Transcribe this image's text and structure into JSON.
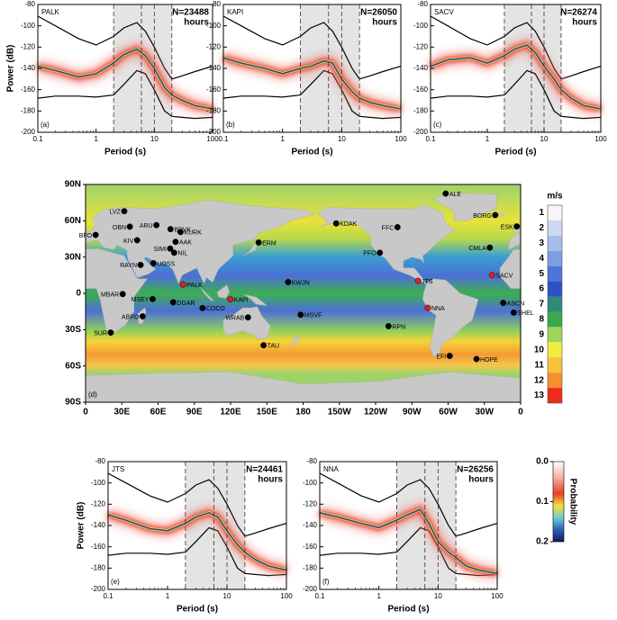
{
  "chart_data": [
    {
      "type": "psd",
      "title": "PALK",
      "annotation": "N=23488",
      "annotation2": "hours",
      "panel_label": "(a)",
      "xlabel": "Period (s)",
      "ylabel": "Power (dB)",
      "xscale": "log",
      "xlim": [
        0.1,
        100
      ],
      "ylim": [
        -200,
        -80
      ],
      "xticks": [
        0.1,
        1,
        10,
        100
      ],
      "yticks": [
        -200,
        -180,
        -160,
        -140,
        -120,
        -100,
        -80
      ],
      "shade": true,
      "dashes": [
        2,
        6,
        10,
        20
      ],
      "x": [
        0.1,
        0.2,
        0.5,
        1,
        2,
        3,
        5,
        7,
        10,
        15,
        20,
        30,
        50,
        100
      ],
      "series": [
        {
          "color": "#000000",
          "values": [
            -91,
            -100,
            -112,
            -118,
            -110,
            -102,
            -97,
            -105,
            -120,
            -140,
            -150,
            -147,
            -143,
            -138
          ]
        },
        {
          "color": "#000000",
          "values": [
            -168,
            -166,
            -166,
            -167,
            -165,
            -155,
            -142,
            -145,
            -160,
            -180,
            -185,
            -186,
            -187,
            -186
          ]
        },
        {
          "color": "#1f4fa0",
          "values": [
            -138,
            -142,
            -148,
            -145,
            -135,
            -127,
            -122,
            -128,
            -140,
            -158,
            -165,
            -170,
            -175,
            -178
          ]
        }
      ]
    },
    {
      "type": "psd",
      "title": "KAPI",
      "annotation": "N=26050",
      "annotation2": "hours",
      "panel_label": "(b)",
      "xlabel": "Period (s)",
      "xscale": "log",
      "xlim": [
        0.1,
        100
      ],
      "ylim": [
        -200,
        -80
      ],
      "xticks": [
        0.1,
        1,
        10,
        100
      ],
      "yticks": [
        -200,
        -180,
        -160,
        -140,
        -120,
        -100,
        -80
      ],
      "shade": true,
      "dashes": [
        2,
        6,
        10,
        20
      ],
      "x": [
        0.1,
        0.2,
        0.5,
        1,
        2,
        3,
        5,
        7,
        10,
        15,
        20,
        30,
        50,
        100
      ],
      "series": [
        {
          "color": "#000000",
          "values": [
            -91,
            -100,
            -112,
            -118,
            -110,
            -102,
            -97,
            -105,
            -120,
            -140,
            -150,
            -147,
            -143,
            -138
          ]
        },
        {
          "color": "#000000",
          "values": [
            -168,
            -166,
            -166,
            -167,
            -165,
            -155,
            -142,
            -145,
            -160,
            -180,
            -185,
            -186,
            -187,
            -186
          ]
        },
        {
          "color": "#1f4fa0",
          "values": [
            -130,
            -135,
            -140,
            -145,
            -140,
            -138,
            -133,
            -135,
            -150,
            -162,
            -168,
            -172,
            -175,
            -178
          ]
        }
      ]
    },
    {
      "type": "psd",
      "title": "SACV",
      "annotation": "N=26274",
      "annotation2": "hours",
      "panel_label": "(c)",
      "xlabel": "Period (s)",
      "xscale": "log",
      "xlim": [
        0.1,
        100
      ],
      "ylim": [
        -200,
        -80
      ],
      "xticks": [
        0.1,
        1,
        10,
        100
      ],
      "yticks": [
        -200,
        -180,
        -160,
        -140,
        -120,
        -100,
        -80
      ],
      "shade": true,
      "dashes": [
        2,
        6,
        10,
        20
      ],
      "x": [
        0.1,
        0.2,
        0.5,
        1,
        2,
        3,
        5,
        7,
        10,
        15,
        20,
        30,
        50,
        100
      ],
      "series": [
        {
          "color": "#000000",
          "values": [
            -91,
            -100,
            -112,
            -118,
            -110,
            -102,
            -97,
            -105,
            -120,
            -140,
            -150,
            -147,
            -143,
            -138
          ]
        },
        {
          "color": "#000000",
          "values": [
            -168,
            -166,
            -166,
            -167,
            -165,
            -155,
            -142,
            -145,
            -160,
            -180,
            -185,
            -186,
            -187,
            -186
          ]
        },
        {
          "color": "#1f4fa0",
          "values": [
            -138,
            -132,
            -130,
            -135,
            -128,
            -122,
            -118,
            -125,
            -138,
            -150,
            -160,
            -168,
            -175,
            -178
          ]
        }
      ]
    },
    {
      "type": "map",
      "panel_label": "(d)",
      "xlim": [
        0,
        360
      ],
      "ylim": [
        -90,
        90
      ],
      "xticks": [
        0,
        {
          "value": 30,
          "label": "30E"
        },
        {
          "value": 60,
          "label": "60E"
        },
        {
          "value": 90,
          "label": "90E"
        },
        {
          "value": 120,
          "label": "120E"
        },
        {
          "value": 150,
          "label": "150E"
        },
        180,
        {
          "value": 210,
          "label": "150W"
        },
        {
          "value": 240,
          "label": "120W"
        },
        {
          "value": 270,
          "label": "90W"
        },
        {
          "value": 300,
          "label": "60W"
        },
        {
          "value": 330,
          "label": "30W"
        },
        {
          "value": 360,
          "label": "0"
        }
      ],
      "yticks": [
        {
          "value": 90,
          "label": "90N"
        },
        {
          "value": 60,
          "label": "60N"
        },
        {
          "value": 30,
          "label": "30N"
        },
        0,
        {
          "value": -30,
          "label": "30S"
        },
        {
          "value": -60,
          "label": "60S"
        },
        {
          "value": -90,
          "label": "90S"
        }
      ],
      "stations": [
        {
          "name": "ALE",
          "lon": 298,
          "lat": 82.5,
          "color": "#000000"
        },
        {
          "name": "BORG",
          "lon": 339,
          "lat": 64.7,
          "color": "#000000"
        },
        {
          "name": "ESK",
          "lon": 356.8,
          "lat": 55.3,
          "color": "#000000"
        },
        {
          "name": "CMLA",
          "lon": 334.5,
          "lat": 37.8,
          "color": "#000000"
        },
        {
          "name": "SACV",
          "lon": 336.4,
          "lat": 15,
          "color": "#e02020"
        },
        {
          "name": "ASCN",
          "lon": 345.6,
          "lat": -7.9,
          "color": "#000000"
        },
        {
          "name": "SHEL",
          "lon": 354.3,
          "lat": -15.9,
          "color": "#000000"
        },
        {
          "name": "HOPE",
          "lon": 323.5,
          "lat": -54.3,
          "color": "#000000"
        },
        {
          "name": "EFI",
          "lon": 301.3,
          "lat": -51.7,
          "color": "#000000"
        },
        {
          "name": "NNA",
          "lon": 283.2,
          "lat": -12,
          "color": "#e02020"
        },
        {
          "name": "JTS",
          "lon": 275.1,
          "lat": 10.3,
          "color": "#e02020"
        },
        {
          "name": "RPN",
          "lon": 250.7,
          "lat": -27.1,
          "color": "#000000"
        },
        {
          "name": "PFO",
          "lon": 243.5,
          "lat": 33.6,
          "color": "#000000"
        },
        {
          "name": "FFC",
          "lon": 258.1,
          "lat": 54.7,
          "color": "#000000"
        },
        {
          "name": "KDAK",
          "lon": 207.4,
          "lat": 57.8,
          "color": "#000000"
        },
        {
          "name": "ERM",
          "lon": 143.2,
          "lat": 42,
          "color": "#000000"
        },
        {
          "name": "KWJN",
          "lon": 167.6,
          "lat": 9.3,
          "color": "#000000"
        },
        {
          "name": "MSVF",
          "lon": 178,
          "lat": -17.7,
          "color": "#000000"
        },
        {
          "name": "WRAB",
          "lon": 134.4,
          "lat": -19.9,
          "color": "#000000"
        },
        {
          "name": "TAU",
          "lon": 147.3,
          "lat": -42.9,
          "color": "#000000"
        },
        {
          "name": "KAPI",
          "lon": 119.8,
          "lat": -5,
          "color": "#e02020"
        },
        {
          "name": "COCO",
          "lon": 96.8,
          "lat": -12.2,
          "color": "#000000"
        },
        {
          "name": "DGAR",
          "lon": 72.5,
          "lat": -7.4,
          "color": "#000000"
        },
        {
          "name": "PALK",
          "lon": 80.7,
          "lat": 7.3,
          "color": "#e02020"
        },
        {
          "name": "MSEY",
          "lon": 55.5,
          "lat": -4.7,
          "color": "#000000"
        },
        {
          "name": "ABPO",
          "lon": 47.2,
          "lat": -19,
          "color": "#000000"
        },
        {
          "name": "MBAR",
          "lon": 30.7,
          "lat": -0.6,
          "color": "#000000"
        },
        {
          "name": "SUR",
          "lon": 20.8,
          "lat": -32.4,
          "color": "#000000"
        },
        {
          "name": "BFO",
          "lon": 8.3,
          "lat": 48.3,
          "color": "#000000"
        },
        {
          "name": "LVZ",
          "lon": 32,
          "lat": 67.9,
          "color": "#000000"
        },
        {
          "name": "OBN",
          "lon": 36.6,
          "lat": 55.1,
          "color": "#000000"
        },
        {
          "name": "KIV",
          "lon": 42.7,
          "lat": 43.9,
          "color": "#000000"
        },
        {
          "name": "ARU",
          "lon": 58.6,
          "lat": 56.4,
          "color": "#000000"
        },
        {
          "name": "BRVK",
          "lon": 70.3,
          "lat": 53.1,
          "color": "#000000"
        },
        {
          "name": "KURK",
          "lon": 78.6,
          "lat": 50.7,
          "color": "#000000"
        },
        {
          "name": "AAK",
          "lon": 74.5,
          "lat": 42.6,
          "color": "#000000"
        },
        {
          "name": "SIMI",
          "lon": 70,
          "lat": 37,
          "color": "#000000"
        },
        {
          "name": "NIL",
          "lon": 73.3,
          "lat": 33.6,
          "color": "#000000"
        },
        {
          "name": "RAYN",
          "lon": 45.5,
          "lat": 23.5,
          "color": "#000000"
        },
        {
          "name": "UOSS",
          "lon": 56.2,
          "lat": 24.9,
          "color": "#000000"
        }
      ]
    },
    {
      "type": "colorbar",
      "label": "m/s",
      "ticks": [
        1,
        2,
        3,
        4,
        5,
        6,
        7,
        8,
        9,
        10,
        11,
        12,
        13
      ],
      "colors": [
        "#f5f5fa",
        "#cfd8f2",
        "#a9bdeb",
        "#7f9de3",
        "#4f74d8",
        "#2f50c8",
        "#2f8a7a",
        "#3aa84e",
        "#9fd35a",
        "#f0ee3c",
        "#f8c13a",
        "#f78f30",
        "#ee2a1f"
      ]
    },
    {
      "type": "psd",
      "title": "JTS",
      "annotation": "N=24461",
      "annotation2": "hours",
      "panel_label": "(e)",
      "xlabel": "Period (s)",
      "ylabel": "Power (dB)",
      "xscale": "log",
      "xlim": [
        0.1,
        100
      ],
      "ylim": [
        -200,
        -80
      ],
      "xticks": [
        0.1,
        1,
        10,
        100
      ],
      "yticks": [
        -200,
        -180,
        -160,
        -140,
        -120,
        -100,
        -80
      ],
      "shade": true,
      "dashes": [
        2,
        6,
        10,
        20
      ],
      "x": [
        0.1,
        0.2,
        0.5,
        1,
        2,
        3,
        5,
        7,
        10,
        15,
        20,
        30,
        50,
        100
      ],
      "series": [
        {
          "color": "#000000",
          "values": [
            -91,
            -100,
            -112,
            -118,
            -110,
            -102,
            -97,
            -105,
            -120,
            -140,
            -150,
            -147,
            -143,
            -138
          ]
        },
        {
          "color": "#000000",
          "values": [
            -168,
            -166,
            -166,
            -167,
            -165,
            -155,
            -142,
            -145,
            -160,
            -180,
            -185,
            -186,
            -187,
            -186
          ]
        },
        {
          "color": "#1f4fa0",
          "values": [
            -130,
            -135,
            -143,
            -145,
            -138,
            -132,
            -128,
            -132,
            -145,
            -158,
            -165,
            -172,
            -178,
            -182
          ]
        }
      ]
    },
    {
      "type": "psd",
      "title": "NNA",
      "annotation": "N=26256",
      "annotation2": "hours",
      "panel_label": "(f)",
      "xlabel": "Period (s)",
      "xscale": "log",
      "xlim": [
        0.1,
        100
      ],
      "ylim": [
        -200,
        -80
      ],
      "xticks": [
        0.1,
        1,
        10,
        100
      ],
      "yticks": [
        -200,
        -180,
        -160,
        -140,
        -120,
        -100,
        -80
      ],
      "shade": true,
      "dashes": [
        2,
        6,
        10,
        20
      ],
      "x": [
        0.1,
        0.2,
        0.5,
        1,
        2,
        3,
        5,
        7,
        10,
        15,
        20,
        30,
        50,
        100
      ],
      "series": [
        {
          "color": "#000000",
          "values": [
            -91,
            -100,
            -112,
            -118,
            -110,
            -102,
            -97,
            -105,
            -120,
            -140,
            -150,
            -147,
            -143,
            -138
          ]
        },
        {
          "color": "#000000",
          "values": [
            -168,
            -166,
            -166,
            -167,
            -165,
            -155,
            -142,
            -145,
            -160,
            -180,
            -185,
            -186,
            -187,
            -186
          ]
        },
        {
          "color": "#1f4fa0",
          "values": [
            -128,
            -132,
            -138,
            -142,
            -135,
            -130,
            -125,
            -138,
            -155,
            -165,
            -170,
            -178,
            -182,
            -185
          ]
        }
      ]
    },
    {
      "type": "gradientbar",
      "label": "Probability",
      "ylim": [
        0,
        0.2
      ],
      "ticks": [
        {
          "value": 0,
          "label": "0.0"
        },
        0.1,
        0.2
      ]
    }
  ]
}
